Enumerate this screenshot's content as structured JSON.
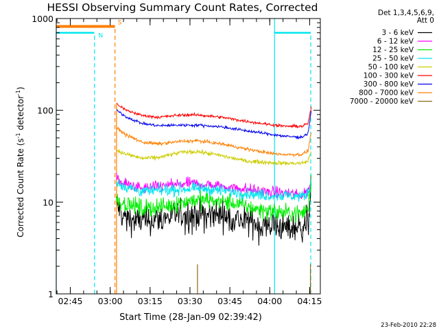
{
  "chart_data": {
    "type": "line",
    "title": "HESSI Observing Summary Count Rates, Corrected",
    "xlabel": "Start Time (28-Jan-09 02:39:42)",
    "ylabel_main": "Corrected Count Rate (s",
    "ylabel_sup1": "-1",
    "ylabel_mid": " detector",
    "ylabel_sup2": "-1",
    "ylabel_end": ")",
    "x_ticks": [
      {
        "label": "02:45",
        "t": 2.75
      },
      {
        "label": "03:00",
        "t": 3.0
      },
      {
        "label": "03:15",
        "t": 3.25
      },
      {
        "label": "03:30",
        "t": 3.5
      },
      {
        "label": "03:45",
        "t": 3.75
      },
      {
        "label": "04:00",
        "t": 4.0
      },
      {
        "label": "04:15",
        "t": 4.25
      }
    ],
    "xlim_hours": [
      2.662,
      4.317
    ],
    "y_scale": "log",
    "y_ticks": [
      {
        "label": "1",
        "value": 1
      },
      {
        "label": "10",
        "value": 10
      },
      {
        "label": "100",
        "value": 100
      },
      {
        "label": "1000",
        "value": 1000
      }
    ],
    "ylim": [
      1,
      1000
    ],
    "legend": {
      "header_line1": "Det 1,3,4,5,6,9,",
      "header_line2": "Att 0",
      "placement": "right"
    },
    "series": [
      {
        "name": "3 - 6 keV",
        "color": "#000000",
        "shape": [
          [
            3.04,
            9.5
          ],
          [
            3.07,
            7.5
          ],
          [
            3.15,
            6.2
          ],
          [
            3.3,
            6.5
          ],
          [
            3.45,
            7.5
          ],
          [
            3.55,
            7.5
          ],
          [
            3.7,
            7.3
          ],
          [
            3.8,
            6.5
          ],
          [
            3.95,
            5.8
          ],
          [
            4.1,
            5.4
          ],
          [
            4.2,
            5.3
          ],
          [
            4.24,
            6.5
          ],
          [
            4.26,
            16
          ]
        ],
        "noise": 0.35,
        "spikes": true
      },
      {
        "name": "6 - 12 keV",
        "color": "#ff00ff",
        "shape": [
          [
            3.04,
            18
          ],
          [
            3.08,
            16
          ],
          [
            3.2,
            14
          ],
          [
            3.35,
            15
          ],
          [
            3.5,
            16
          ],
          [
            3.6,
            15.5
          ],
          [
            3.75,
            14.5
          ],
          [
            3.9,
            13.5
          ],
          [
            4.0,
            12.8
          ],
          [
            4.1,
            12.5
          ],
          [
            4.2,
            12
          ],
          [
            4.24,
            13
          ],
          [
            4.26,
            18
          ]
        ],
        "noise": 0.14
      },
      {
        "name": "12 - 25 keV",
        "color": "#00ee00",
        "shape": [
          [
            3.04,
            11
          ],
          [
            3.07,
            10
          ],
          [
            3.2,
            8.5
          ],
          [
            3.35,
            9
          ],
          [
            3.5,
            10.5
          ],
          [
            3.6,
            10.5
          ],
          [
            3.75,
            10
          ],
          [
            3.9,
            8.5
          ],
          [
            4.0,
            8
          ],
          [
            4.1,
            7.6
          ],
          [
            4.2,
            7.5
          ],
          [
            4.24,
            8.5
          ],
          [
            4.26,
            17
          ]
        ],
        "noise": 0.22
      },
      {
        "name": "25 - 50 keV",
        "color": "#00e5ee",
        "shape": [
          [
            3.04,
            17
          ],
          [
            3.08,
            15
          ],
          [
            3.2,
            13
          ],
          [
            3.35,
            13.5
          ],
          [
            3.5,
            14
          ],
          [
            3.6,
            14
          ],
          [
            3.75,
            13
          ],
          [
            3.9,
            12.2
          ],
          [
            4.0,
            11.8
          ],
          [
            4.1,
            11.8
          ],
          [
            4.2,
            11.5
          ],
          [
            4.24,
            12.5
          ],
          [
            4.26,
            18
          ]
        ],
        "noise": 0.14
      },
      {
        "name": "50 - 100 keV",
        "color": "#cccc00",
        "shape": [
          [
            3.04,
            37
          ],
          [
            3.08,
            34
          ],
          [
            3.2,
            30
          ],
          [
            3.3,
            30.5
          ],
          [
            3.45,
            35
          ],
          [
            3.55,
            35.5
          ],
          [
            3.7,
            32
          ],
          [
            3.85,
            28
          ],
          [
            4.0,
            27
          ],
          [
            4.1,
            26.5
          ],
          [
            4.2,
            26.5
          ],
          [
            4.24,
            28
          ],
          [
            4.26,
            36
          ]
        ],
        "noise": 0.05
      },
      {
        "name": "100 - 300 keV",
        "color": "#ff0000",
        "shape": [
          [
            3.04,
            118
          ],
          [
            3.1,
            100
          ],
          [
            3.2,
            88
          ],
          [
            3.3,
            84
          ],
          [
            3.45,
            89
          ],
          [
            3.55,
            89
          ],
          [
            3.7,
            84
          ],
          [
            3.85,
            76
          ],
          [
            4.0,
            70
          ],
          [
            4.1,
            67
          ],
          [
            4.2,
            67
          ],
          [
            4.24,
            72
          ],
          [
            4.26,
            108
          ]
        ],
        "noise": 0.035
      },
      {
        "name": "300 - 800 keV",
        "color": "#0000ee",
        "shape": [
          [
            3.04,
            100
          ],
          [
            3.1,
            85
          ],
          [
            3.2,
            72
          ],
          [
            3.3,
            68
          ],
          [
            3.45,
            69
          ],
          [
            3.55,
            69
          ],
          [
            3.7,
            66
          ],
          [
            3.85,
            60
          ],
          [
            4.0,
            55
          ],
          [
            4.1,
            52
          ],
          [
            4.2,
            51
          ],
          [
            4.24,
            56
          ],
          [
            4.26,
            100
          ]
        ],
        "noise": 0.035
      },
      {
        "name": "800 - 7000 keV",
        "color": "#ff7f00",
        "shape": [
          [
            3.04,
            64
          ],
          [
            3.1,
            54
          ],
          [
            3.2,
            45
          ],
          [
            3.3,
            43
          ],
          [
            3.45,
            46
          ],
          [
            3.55,
            46.5
          ],
          [
            3.7,
            43
          ],
          [
            3.85,
            38
          ],
          [
            4.0,
            34
          ],
          [
            4.1,
            33
          ],
          [
            4.2,
            33
          ],
          [
            4.24,
            36
          ],
          [
            4.26,
            58
          ]
        ],
        "noise": 0.04
      },
      {
        "name": "7000 - 20000 keV",
        "color": "#8b6914",
        "shape": [],
        "noise": 0
      },
      {
        "name": "",
        "color": "#ff7f00",
        "shape": [],
        "noise": 0
      }
    ],
    "orbit_flags": [
      {
        "label": "N",
        "color": "#00e5ee",
        "start": 2.662,
        "end": 2.9,
        "level": 700
      },
      {
        "label": "S",
        "color": "#ff7f00",
        "start": 2.662,
        "end": 3.03,
        "level": 820
      }
    ],
    "cyan_end_flag": {
      "start": 4.03,
      "end": 4.257,
      "level": 700
    },
    "vlines": [
      {
        "t": 2.662,
        "color": "#00e5ee",
        "dash": false,
        "from": 1,
        "to": 700
      },
      {
        "t": 2.902,
        "color": "#00e5ee",
        "dash": true,
        "from": 1,
        "to": 700
      },
      {
        "t": 3.03,
        "color": "#ff7f00",
        "dash": true,
        "from": 1,
        "to": 820
      },
      {
        "t": 3.04,
        "color": "#ff7f00",
        "dash": false,
        "from": 1,
        "to": 120
      },
      {
        "t": 4.03,
        "color": "#00e5ee",
        "dash": false,
        "from": 1,
        "to": 1000
      },
      {
        "t": 4.257,
        "color": "#00e5ee",
        "dash": true,
        "from": 1,
        "to": 700
      }
    ],
    "brown_spikes": [
      {
        "t": 3.547,
        "height": 2.1
      },
      {
        "t": 4.255,
        "height": 2.1
      }
    ],
    "footer_timestamp": "23-Feb-2010 22:28"
  }
}
